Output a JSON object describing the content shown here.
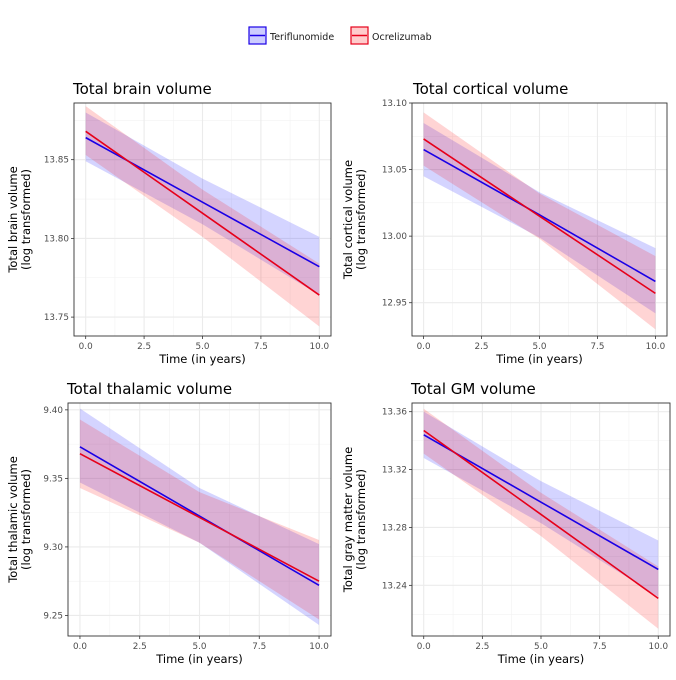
{
  "legend": {
    "items": [
      {
        "label": "Teriflunomide",
        "color": "#1a00e6",
        "fill": "#ccccff"
      },
      {
        "label": "Ocrelizumab",
        "color": "#e6001a",
        "fill": "#ffcccc"
      }
    ]
  },
  "chart_data": [
    {
      "type": "line",
      "title": "Total brain volume",
      "xlabel": "Time (in years)",
      "ylabel": [
        "Total brain volume",
        "(log transformed)"
      ],
      "xlim": [
        -0.5,
        10.5
      ],
      "ylim": [
        13.738,
        13.886
      ],
      "xticks": [
        "0.0",
        "2.5",
        "5.0",
        "7.5",
        "10.0"
      ],
      "xtick_values": [
        0,
        2.5,
        5,
        7.5,
        10
      ],
      "yticks": [
        "13.75",
        "13.80",
        "13.85"
      ],
      "ytick_values": [
        13.75,
        13.8,
        13.85
      ],
      "grid": true,
      "series": [
        {
          "name": "Teriflunomide",
          "x": [
            0,
            5,
            10
          ],
          "y": [
            13.864,
            13.823,
            13.782
          ],
          "lower": [
            13.849,
            13.809,
            13.764
          ],
          "upper": [
            13.88,
            13.838,
            13.801
          ]
        },
        {
          "name": "Ocrelizumab",
          "x": [
            0,
            5,
            10
          ],
          "y": [
            13.868,
            13.816,
            13.764
          ],
          "lower": [
            13.853,
            13.801,
            13.744
          ],
          "upper": [
            13.884,
            13.831,
            13.784
          ]
        }
      ]
    },
    {
      "type": "line",
      "title": "Total cortical volume",
      "xlabel": "Time (in years)",
      "ylabel": [
        "Total cortical volume",
        "(log transformed)"
      ],
      "xlim": [
        -0.5,
        10.5
      ],
      "ylim": [
        12.925,
        13.1
      ],
      "xticks": [
        "0.0",
        "2.5",
        "5.0",
        "7.5",
        "10.0"
      ],
      "xtick_values": [
        0,
        2.5,
        5,
        7.5,
        10
      ],
      "yticks": [
        "12.95",
        "13.00",
        "13.05",
        "13.10"
      ],
      "ytick_values": [
        12.95,
        13.0,
        13.05,
        13.1
      ],
      "grid": true,
      "series": [
        {
          "name": "Teriflunomide",
          "x": [
            0,
            5,
            10
          ],
          "y": [
            13.065,
            13.016,
            12.966
          ],
          "lower": [
            13.045,
            12.999,
            12.942
          ],
          "upper": [
            13.085,
            13.033,
            12.991
          ]
        },
        {
          "name": "Ocrelizumab",
          "x": [
            0,
            5,
            10
          ],
          "y": [
            13.073,
            13.015,
            12.957
          ],
          "lower": [
            13.053,
            12.998,
            12.93
          ],
          "upper": [
            13.093,
            13.032,
            12.985
          ]
        }
      ]
    },
    {
      "type": "line",
      "title": "Total thalamic volume",
      "xlabel": "Time (in years)",
      "ylabel": [
        "Total thalamic volume",
        "(log transformed)"
      ],
      "xlim": [
        -0.5,
        10.5
      ],
      "ylim": [
        9.235,
        9.405
      ],
      "xticks": [
        "0.0",
        "2.5",
        "5.0",
        "7.5",
        "10.0"
      ],
      "xtick_values": [
        0,
        2.5,
        5,
        7.5,
        10
      ],
      "yticks": [
        "9.25",
        "9.30",
        "9.35",
        "9.40"
      ],
      "ytick_values": [
        9.25,
        9.3,
        9.35,
        9.4
      ],
      "grid": true,
      "series": [
        {
          "name": "Teriflunomide",
          "x": [
            0,
            5,
            10
          ],
          "y": [
            9.373,
            9.3225,
            9.272
          ],
          "lower": [
            9.347,
            9.303,
            9.243
          ],
          "upper": [
            9.401,
            9.343,
            9.302
          ]
        },
        {
          "name": "Ocrelizumab",
          "x": [
            0,
            5,
            10
          ],
          "y": [
            9.368,
            9.3215,
            9.275
          ],
          "lower": [
            9.343,
            9.303,
            9.247
          ],
          "upper": [
            9.393,
            9.34,
            9.305
          ]
        }
      ]
    },
    {
      "type": "line",
      "title": "Total GM volume",
      "xlabel": "Time (in years)",
      "ylabel": [
        "Total gray matter volume",
        "(log transformed)"
      ],
      "xlim": [
        -0.5,
        10.5
      ],
      "ylim": [
        13.205,
        13.366
      ],
      "xticks": [
        "0.0",
        "2.5",
        "5.0",
        "7.5",
        "10.0"
      ],
      "xtick_values": [
        0,
        2.5,
        5,
        7.5,
        10
      ],
      "yticks": [
        "13.24",
        "13.28",
        "13.32",
        "13.36"
      ],
      "ytick_values": [
        13.24,
        13.28,
        13.32,
        13.36
      ],
      "grid": true,
      "series": [
        {
          "name": "Teriflunomide",
          "x": [
            0,
            5,
            10
          ],
          "y": [
            13.344,
            13.2975,
            13.251
          ],
          "lower": [
            13.328,
            13.283,
            13.232
          ],
          "upper": [
            13.36,
            13.312,
            13.271
          ]
        },
        {
          "name": "Ocrelizumab",
          "x": [
            0,
            5,
            10
          ],
          "y": [
            13.347,
            13.289,
            13.231
          ],
          "lower": [
            13.331,
            13.274,
            13.21
          ],
          "upper": [
            13.362,
            13.304,
            13.253
          ]
        }
      ]
    }
  ]
}
